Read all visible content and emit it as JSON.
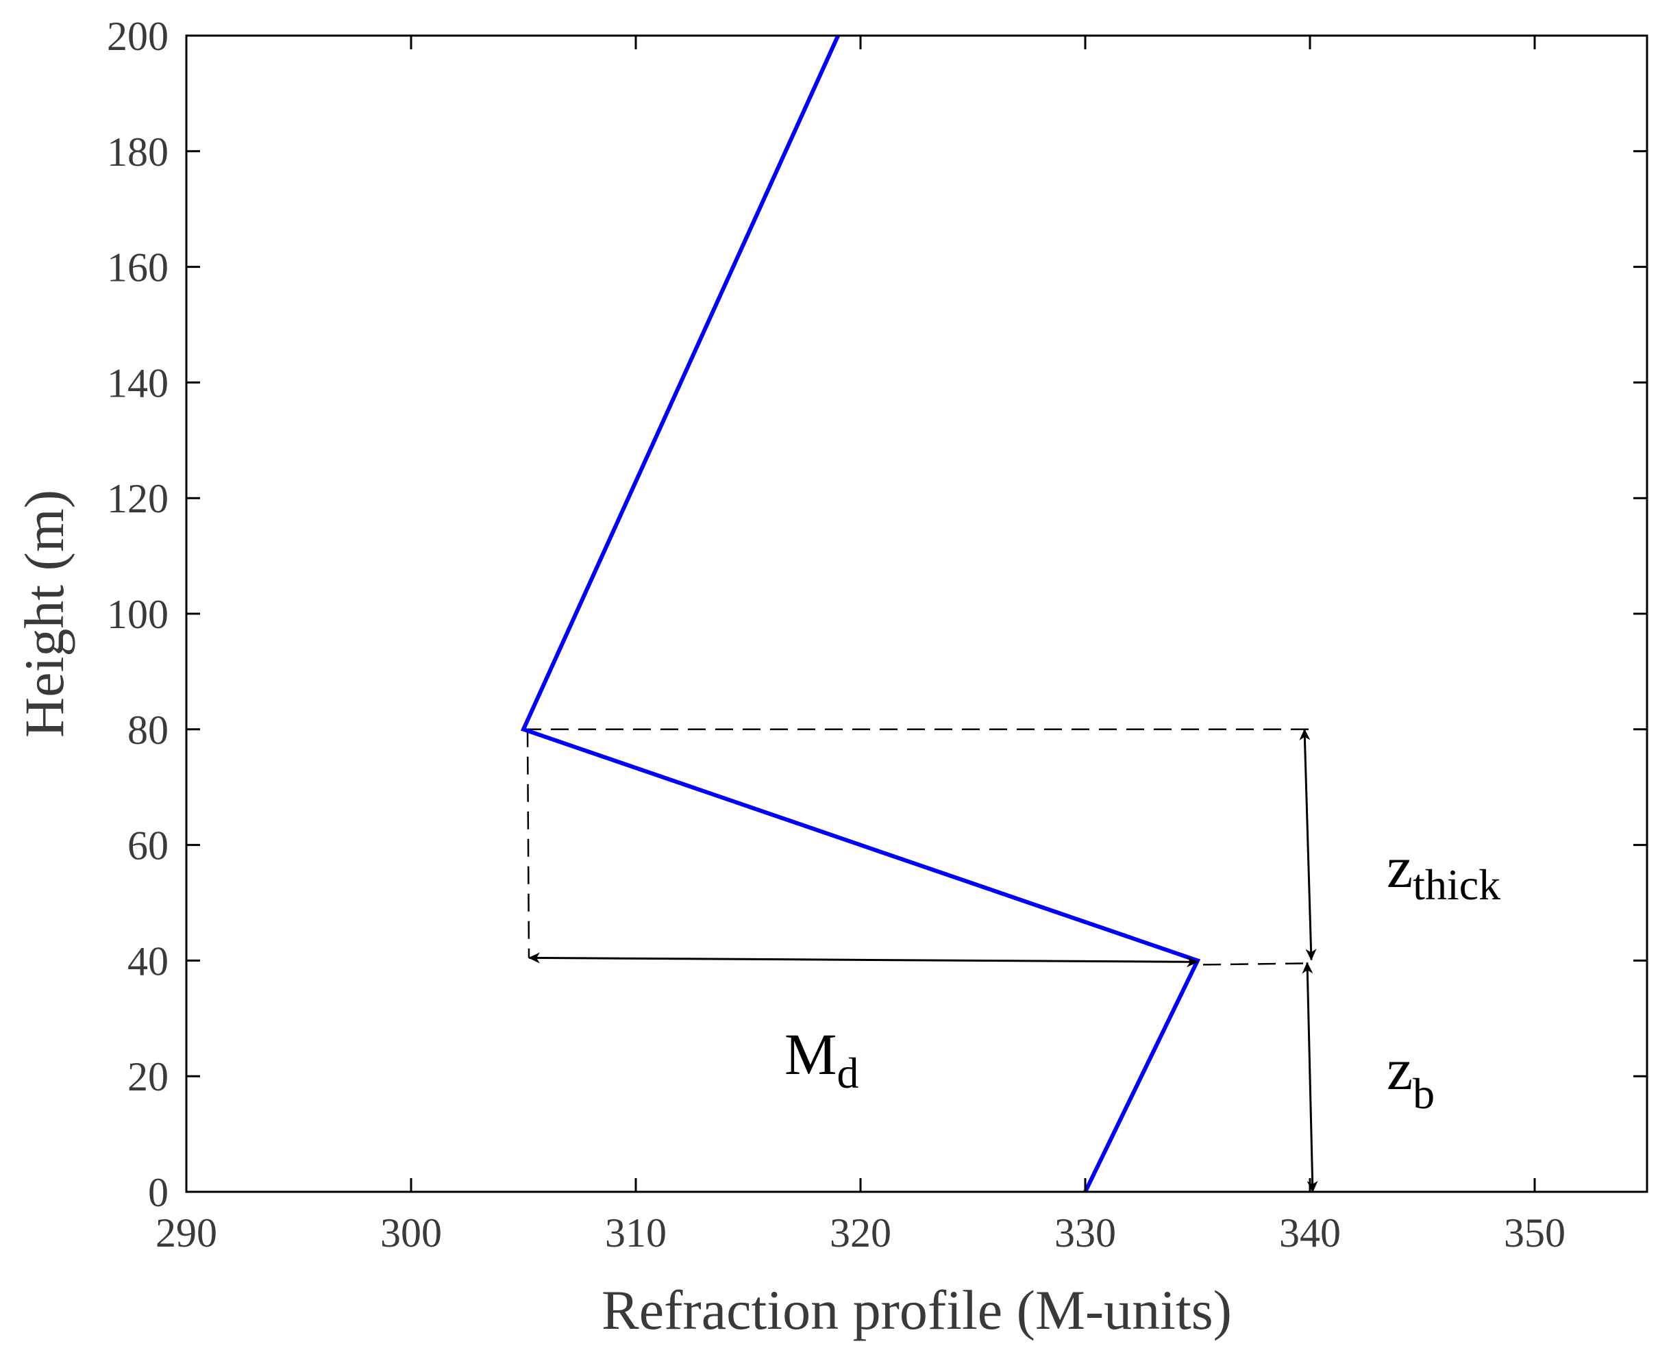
{
  "chart_data": {
    "type": "line",
    "title": "",
    "xlabel": "Refraction profile (M-units)",
    "ylabel": "Height (m)",
    "xlim": [
      290,
      355
    ],
    "ylim": [
      0,
      200
    ],
    "xticks": [
      290,
      300,
      310,
      320,
      330,
      340,
      350
    ],
    "yticks": [
      0,
      20,
      40,
      60,
      80,
      100,
      120,
      140,
      160,
      180,
      200
    ],
    "grid": false,
    "series": [
      {
        "color": "#0000ff",
        "points": [
          [
            330,
            0
          ],
          [
            335,
            40
          ],
          [
            305,
            80
          ],
          [
            319,
            200
          ]
        ]
      }
    ],
    "annotations": {
      "md": {
        "main": "M",
        "sub": "d",
        "x_from": 305,
        "x_to": 335,
        "y": 40
      },
      "zthick": {
        "main": "z",
        "sub": "thick",
        "x": 340,
        "y_from": 40,
        "y_to": 80
      },
      "zb": {
        "main": "z",
        "sub": "b",
        "x": 340,
        "y_from": 0,
        "y_to": 40
      }
    }
  }
}
